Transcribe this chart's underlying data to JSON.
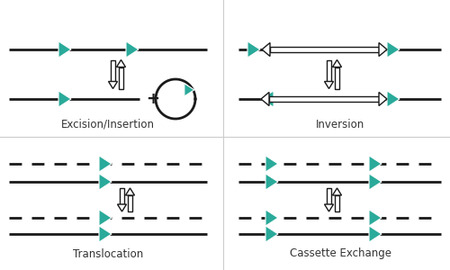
{
  "bg_color": "#ffffff",
  "teal": "#2aaa9a",
  "line_color": "#1a1a1a",
  "text_color": "#333333",
  "labels": {
    "excision": "Excision/Insertion",
    "inversion": "Inversion",
    "translocation": "Translocation",
    "cassette": "Cassette Exchange"
  },
  "label_fontsize": 8.5
}
